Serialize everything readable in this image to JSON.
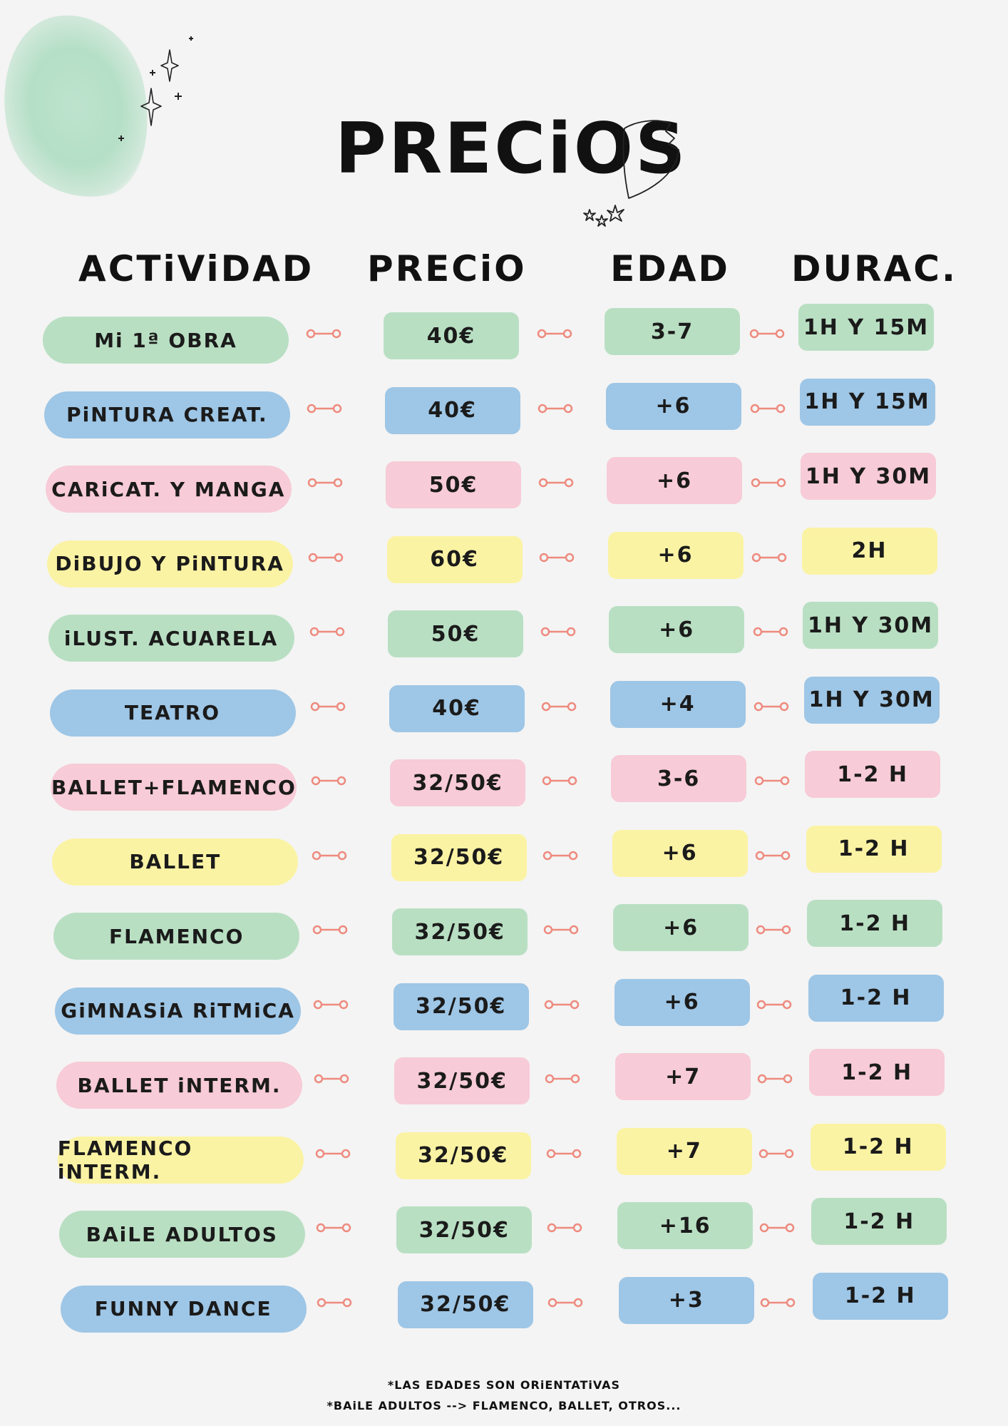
{
  "title": "PRECiOS",
  "headers": {
    "actividad": "ACTiViDAD",
    "precio": "PRECiO",
    "edad": "EDAD",
    "duracion": "DURAC."
  },
  "rows": [
    {
      "actividad": "Mi 1ª OBRA",
      "precio": "40€",
      "edad": "3-7",
      "duracion": "1H Y 15M",
      "color": "#b9dfc3"
    },
    {
      "actividad": "PiNTURA CREAT.",
      "precio": "40€",
      "edad": "+6",
      "duracion": "1H Y 15M",
      "color": "#9ec6e6"
    },
    {
      "actividad": "CARiCAT. Y MANGA",
      "precio": "50€",
      "edad": "+6",
      "duracion": "1H Y 30M",
      "color": "#f7cbd7"
    },
    {
      "actividad": "DiBUJO Y PiNTURA",
      "precio": "60€",
      "edad": "+6",
      "duracion": "2H",
      "color": "#fbf3a4"
    },
    {
      "actividad": "iLUST. ACUARELA",
      "precio": "50€",
      "edad": "+6",
      "duracion": "1H Y 30M",
      "color": "#b9dfc3"
    },
    {
      "actividad": "TEATRO",
      "precio": "40€",
      "edad": "+4",
      "duracion": "1H Y 30M",
      "color": "#9ec6e6"
    },
    {
      "actividad": "BALLET+FLAMENCO",
      "precio": "32/50€",
      "edad": "3-6",
      "duracion": "1-2 H",
      "color": "#f7cbd7"
    },
    {
      "actividad": "BALLET",
      "precio": "32/50€",
      "edad": "+6",
      "duracion": "1-2 H",
      "color": "#fbf3a4"
    },
    {
      "actividad": "FLAMENCO",
      "precio": "32/50€",
      "edad": "+6",
      "duracion": "1-2 H",
      "color": "#b9dfc3"
    },
    {
      "actividad": "GiMNASiA RiTMiCA",
      "precio": "32/50€",
      "edad": "+6",
      "duracion": "1-2 H",
      "color": "#9ec6e6"
    },
    {
      "actividad": "BALLET iNTERM.",
      "precio": "32/50€",
      "edad": "+7",
      "duracion": "1-2 H",
      "color": "#f7cbd7"
    },
    {
      "actividad": "FLAMENCO iNTERM.",
      "precio": "32/50€",
      "edad": "+7",
      "duracion": "1-2 H",
      "color": "#fbf3a4"
    },
    {
      "actividad": "BAiLE ADULTOS",
      "precio": "32/50€",
      "edad": "+16",
      "duracion": "1-2 H",
      "color": "#b9dfc3"
    },
    {
      "actividad": "FUNNY DANCE",
      "precio": "32/50€",
      "edad": "+3",
      "duracion": "1-2 H",
      "color": "#9ec6e6"
    }
  ],
  "notes": [
    "*LAS EDADES SON ORiENTATiVAS",
    "*BAiLE ADULTOS --> FLAMENCO, BALLET, OTROS..."
  ],
  "icons": {
    "connector": "connector-icon",
    "sparkles": "sparkle-icon",
    "decoration": "doodle-icon"
  },
  "colors": {
    "green": "#b9dfc3",
    "blue": "#9ec6e6",
    "pink": "#f7cbd7",
    "yellow": "#fbf3a4",
    "connector": "#ee8a7e"
  }
}
